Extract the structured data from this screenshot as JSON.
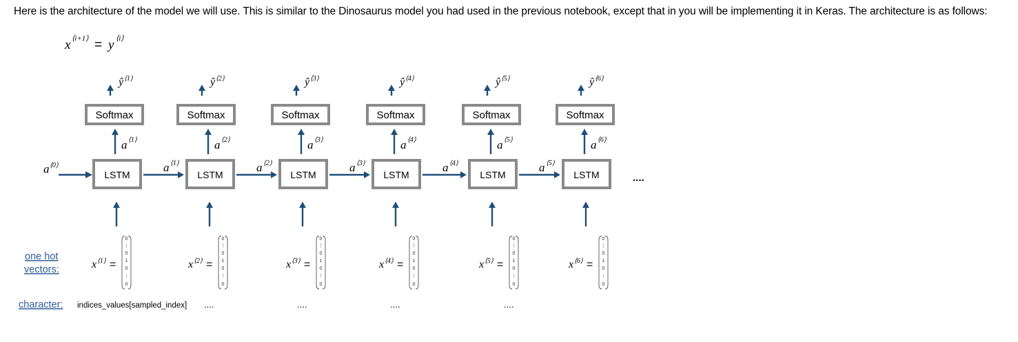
{
  "intro_text": "Here is the architecture of the model we will use. This is similar to the Dinosaurus model you had used in the previous notebook, except that in you will be implementing it in Keras. The architecture is as follows:",
  "diagram": {
    "equation": {
      "lhs": "x",
      "lhs_sup": "⟨i+1⟩",
      "eq": "=",
      "rhs": "y",
      "rhs_sup": "⟨i⟩"
    },
    "softmax_label": "Softmax",
    "lstm_label": "LSTM",
    "initial_activation": {
      "base": "a",
      "sup": "⟨0⟩"
    },
    "continuation": "....",
    "steps": [
      {
        "y": "ŷ",
        "y_sup": "⟨1⟩",
        "a": "a",
        "a_sup": "⟨1⟩",
        "x": "x",
        "x_sup": "⟨1⟩"
      },
      {
        "y": "ŷ",
        "y_sup": "⟨2⟩",
        "a": "a",
        "a_sup": "⟨2⟩",
        "x": "x",
        "x_sup": "⟨2⟩"
      },
      {
        "y": "ŷ",
        "y_sup": "⟨3⟩",
        "a": "a",
        "a_sup": "⟨3⟩",
        "x": "x",
        "x_sup": "⟨3⟩"
      },
      {
        "y": "ŷ",
        "y_sup": "⟨4⟩",
        "a": "a",
        "a_sup": "⟨4⟩",
        "x": "x",
        "x_sup": "⟨4⟩"
      },
      {
        "y": "ŷ",
        "y_sup": "⟨5⟩",
        "a": "a",
        "a_sup": "⟨5⟩",
        "x": "x",
        "x_sup": "⟨5⟩"
      },
      {
        "y": "ŷ",
        "y_sup": "⟨6⟩",
        "a": "a",
        "a_sup": "⟨6⟩",
        "x": "x",
        "x_sup": "⟨6⟩"
      }
    ],
    "onehot_vector": [
      "0",
      "⋮",
      "0",
      "1",
      "0",
      "⋮",
      "0"
    ],
    "onehot_label_line1": "one hot",
    "onehot_label_line2": "vectors:",
    "character_label": "character:",
    "character_values": [
      "indices_values[sampled_index]",
      "....",
      "....",
      "....",
      "...."
    ]
  }
}
